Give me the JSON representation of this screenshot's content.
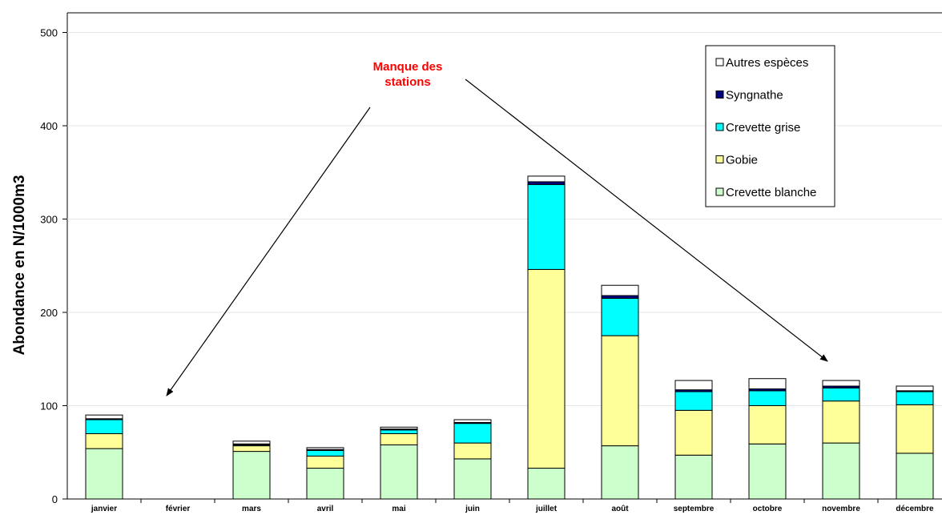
{
  "chart_data": {
    "type": "bar",
    "stacked": true,
    "ylabel": "Abondance en N/1000m3",
    "ylim": [
      0,
      500
    ],
    "yticks": [
      0,
      100,
      200,
      300,
      400,
      500
    ],
    "categories": [
      "janvier",
      "février",
      "mars",
      "avril",
      "mai",
      "juin",
      "juillet",
      "août",
      "septembre",
      "octobre",
      "novembre",
      "décembre"
    ],
    "series": [
      {
        "name": "Crevette blanche",
        "color": "#ccffcc",
        "values": [
          54,
          null,
          51,
          33,
          58,
          43,
          33,
          57,
          47,
          59,
          60,
          49
        ]
      },
      {
        "name": "Gobie",
        "color": "#ffff99",
        "values": [
          16,
          null,
          6,
          13,
          12,
          17,
          213,
          118,
          48,
          41,
          45,
          52
        ]
      },
      {
        "name": "Crevette grise",
        "color": "#00ffff",
        "values": [
          15,
          null,
          1,
          6,
          4,
          21,
          91,
          40,
          20,
          16,
          14,
          14
        ]
      },
      {
        "name": "Syngnathe",
        "color": "#000080",
        "values": [
          1,
          null,
          1,
          1,
          1,
          1,
          3,
          3,
          2,
          2,
          2,
          1
        ]
      },
      {
        "name": "Autres espèces",
        "color": "#ffffff",
        "values": [
          4,
          null,
          3,
          2,
          2,
          3,
          6,
          11,
          10,
          11,
          6,
          5
        ]
      }
    ],
    "legend_position": "top-right",
    "annotation": {
      "text_lines": [
        "Manque des",
        "stations"
      ],
      "color": "#ff0000",
      "points_to": [
        "février",
        "novembre"
      ]
    },
    "grid": false
  }
}
